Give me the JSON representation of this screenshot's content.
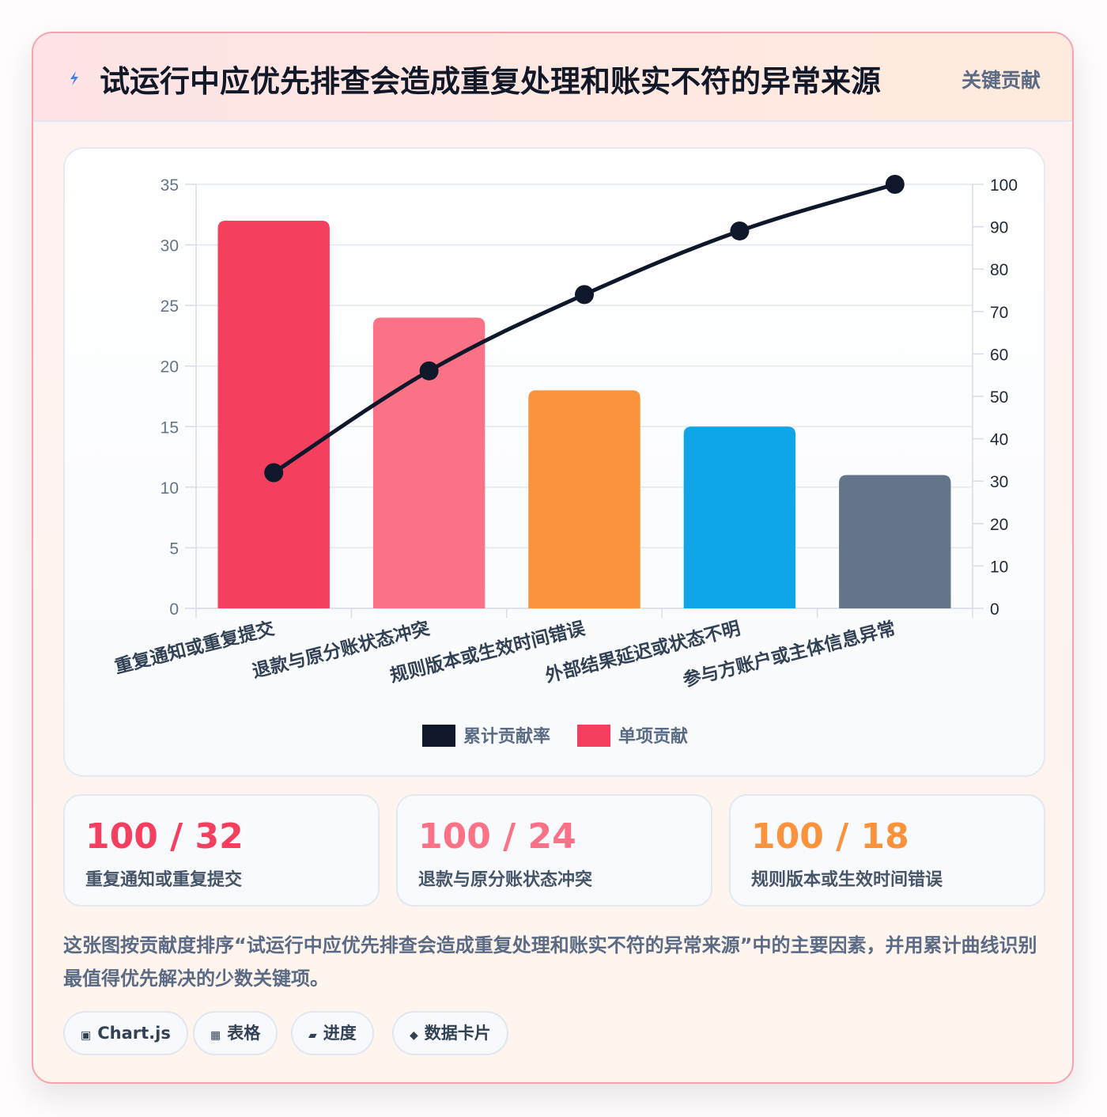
{
  "header": {
    "title": "试运行中应优先排查会造成重复处理和账实不符的异常来源",
    "badge": "关键贡献"
  },
  "chart_data": {
    "type": "bar",
    "categories": [
      "重复通知或重复提交",
      "退款与原分账状态冲突",
      "规则版本或生效时间错误",
      "外部结果延迟或状态不明",
      "参与方账户或主体信息异常"
    ],
    "series": [
      {
        "name": "单项贡献",
        "type": "bar",
        "axis": "left",
        "values": [
          32,
          24,
          18,
          15,
          11
        ],
        "colors": [
          "#f43f5e",
          "#fb7185",
          "#fb923c",
          "#0ea5e9",
          "#64748b"
        ]
      },
      {
        "name": "累计贡献率",
        "type": "line",
        "axis": "right",
        "values": [
          32,
          56,
          74,
          89,
          100
        ],
        "color": "#0f172a"
      }
    ],
    "y_left": {
      "min": 0,
      "max": 35,
      "ticks": [
        0,
        5,
        10,
        15,
        20,
        25,
        30,
        35
      ]
    },
    "y_right": {
      "min": 0,
      "max": 100,
      "ticks": [
        0,
        10,
        20,
        30,
        40,
        50,
        60,
        70,
        80,
        90,
        100
      ]
    },
    "legend": {
      "position": "bottom",
      "items": [
        {
          "name": "累计贡献率",
          "color": "#0f172a"
        },
        {
          "name": "单项贡献",
          "color": "#f43f5e"
        }
      ]
    },
    "grid": true
  },
  "stats": [
    {
      "value": "100 / 32",
      "label": "重复通知或重复提交",
      "color": "#f43f5e"
    },
    {
      "value": "100 / 24",
      "label": "退款与原分账状态冲突",
      "color": "#fb7185"
    },
    {
      "value": "100 / 18",
      "label": "规则版本或生效时间错误",
      "color": "#fb923c"
    }
  ],
  "description": "这张图按贡献度排序“试运行中应优先排查会造成重复处理和账实不符的异常来源”中的主要因素，并用累计曲线识别最值得优先解决的少数关键项。",
  "chips": [
    {
      "icon": "▣",
      "icon_name": "chart-icon",
      "label": "Chart.js"
    },
    {
      "icon": "▦",
      "icon_name": "table-icon",
      "label": "表格"
    },
    {
      "icon": "▰",
      "icon_name": "progress-icon",
      "label": "进度"
    },
    {
      "icon": "◆",
      "icon_name": "card-icon",
      "label": "数据卡片"
    }
  ]
}
